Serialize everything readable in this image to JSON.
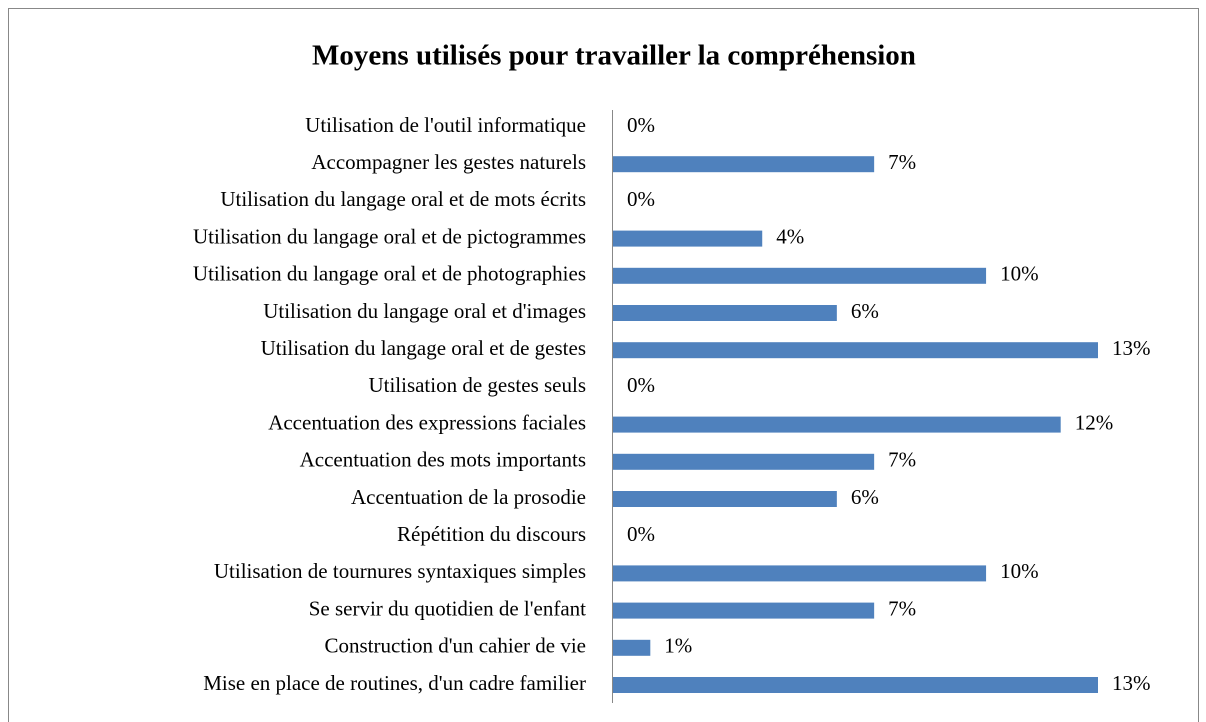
{
  "chart_data": {
    "type": "bar",
    "orientation": "horizontal",
    "title": "Moyens utilisés pour travailler la compréhension",
    "categories": [
      "Utilisation de l'outil informatique",
      "Accompagner les gestes naturels",
      "Utilisation du langage oral et de mots écrits",
      "Utilisation du langage oral et de pictogrammes",
      "Utilisation du langage oral et de photographies",
      "Utilisation du langage oral et d'images",
      "Utilisation du langage oral et de gestes",
      "Utilisation de gestes seuls",
      "Accentuation des expressions faciales",
      "Accentuation des mots importants",
      "Accentuation de la prosodie",
      "Répétition du discours",
      "Utilisation de tournures syntaxiques simples",
      "Se servir du quotidien de l'enfant",
      "Construction d'un cahier de vie",
      "Mise en place de routines, d'un cadre familier"
    ],
    "values": [
      0,
      7,
      0,
      4,
      10,
      6,
      13,
      0,
      12,
      7,
      6,
      0,
      10,
      7,
      1,
      13
    ],
    "value_labels": [
      "0%",
      "7%",
      "0%",
      "4%",
      "10%",
      "6%",
      "13%",
      "0%",
      "12%",
      "7%",
      "6%",
      "0%",
      "10%",
      "7%",
      "1%",
      "13%"
    ],
    "color": "#4f81bd"
  }
}
